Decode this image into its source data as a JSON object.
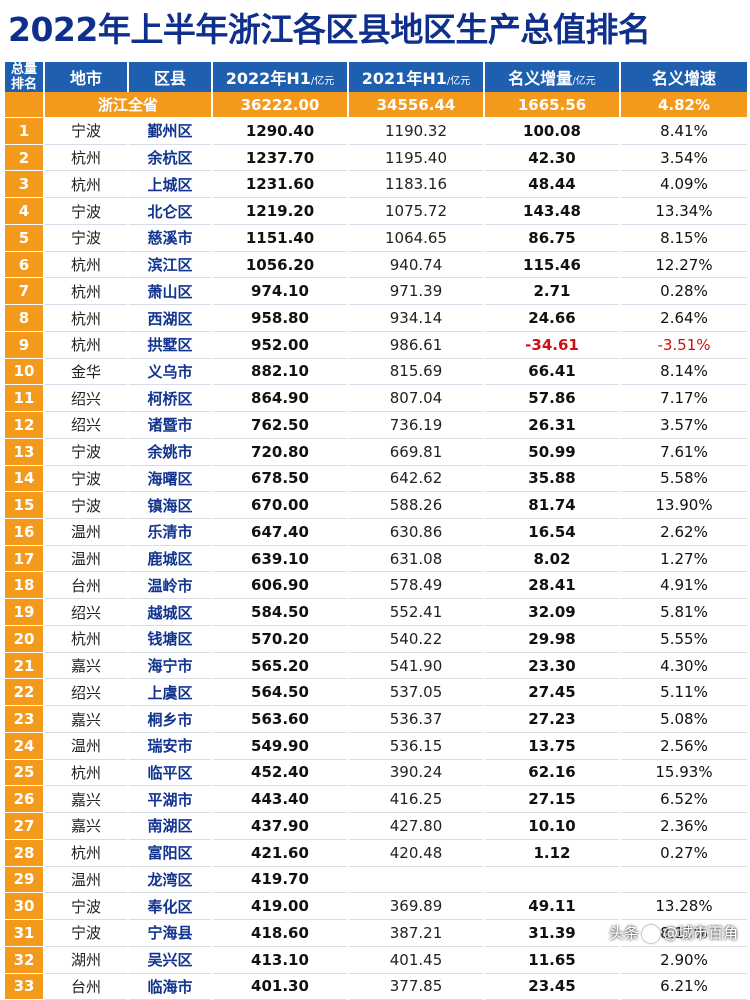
{
  "title": "2022年上半年浙江各区县地区生产总值排名",
  "headers": {
    "rank_top": "总量",
    "rank_bottom": "排名",
    "city": "地市",
    "district": "区县",
    "h1_2022": "2022年H1",
    "h1_2022_unit": "/亿元",
    "h1_2021": "2021年H1",
    "h1_2021_unit": "/亿元",
    "increase": "名义增量",
    "increase_unit": "/亿元",
    "rate": "名义增速"
  },
  "total": {
    "label": "浙江全省",
    "h1_2022": "36222.00",
    "h1_2021": "34556.44",
    "increase": "1665.56",
    "rate": "4.82%"
  },
  "rows": [
    {
      "rank": "1",
      "city": "宁波",
      "district": "鄞州区",
      "h1_2022": "1290.40",
      "h1_2021": "1190.32",
      "increase": "100.08",
      "rate": "8.41%"
    },
    {
      "rank": "2",
      "city": "杭州",
      "district": "余杭区",
      "h1_2022": "1237.70",
      "h1_2021": "1195.40",
      "increase": "42.30",
      "rate": "3.54%"
    },
    {
      "rank": "3",
      "city": "杭州",
      "district": "上城区",
      "h1_2022": "1231.60",
      "h1_2021": "1183.16",
      "increase": "48.44",
      "rate": "4.09%"
    },
    {
      "rank": "4",
      "city": "宁波",
      "district": "北仑区",
      "h1_2022": "1219.20",
      "h1_2021": "1075.72",
      "increase": "143.48",
      "rate": "13.34%"
    },
    {
      "rank": "5",
      "city": "宁波",
      "district": "慈溪市",
      "h1_2022": "1151.40",
      "h1_2021": "1064.65",
      "increase": "86.75",
      "rate": "8.15%"
    },
    {
      "rank": "6",
      "city": "杭州",
      "district": "滨江区",
      "h1_2022": "1056.20",
      "h1_2021": "940.74",
      "increase": "115.46",
      "rate": "12.27%"
    },
    {
      "rank": "7",
      "city": "杭州",
      "district": "萧山区",
      "h1_2022": "974.10",
      "h1_2021": "971.39",
      "increase": "2.71",
      "rate": "0.28%"
    },
    {
      "rank": "8",
      "city": "杭州",
      "district": "西湖区",
      "h1_2022": "958.80",
      "h1_2021": "934.14",
      "increase": "24.66",
      "rate": "2.64%"
    },
    {
      "rank": "9",
      "city": "杭州",
      "district": "拱墅区",
      "h1_2022": "952.00",
      "h1_2021": "986.61",
      "increase": "-34.61",
      "rate": "-3.51%",
      "negative": true
    },
    {
      "rank": "10",
      "city": "金华",
      "district": "义乌市",
      "h1_2022": "882.10",
      "h1_2021": "815.69",
      "increase": "66.41",
      "rate": "8.14%"
    },
    {
      "rank": "11",
      "city": "绍兴",
      "district": "柯桥区",
      "h1_2022": "864.90",
      "h1_2021": "807.04",
      "increase": "57.86",
      "rate": "7.17%"
    },
    {
      "rank": "12",
      "city": "绍兴",
      "district": "诸暨市",
      "h1_2022": "762.50",
      "h1_2021": "736.19",
      "increase": "26.31",
      "rate": "3.57%"
    },
    {
      "rank": "13",
      "city": "宁波",
      "district": "余姚市",
      "h1_2022": "720.80",
      "h1_2021": "669.81",
      "increase": "50.99",
      "rate": "7.61%"
    },
    {
      "rank": "14",
      "city": "宁波",
      "district": "海曙区",
      "h1_2022": "678.50",
      "h1_2021": "642.62",
      "increase": "35.88",
      "rate": "5.58%"
    },
    {
      "rank": "15",
      "city": "宁波",
      "district": "镇海区",
      "h1_2022": "670.00",
      "h1_2021": "588.26",
      "increase": "81.74",
      "rate": "13.90%"
    },
    {
      "rank": "16",
      "city": "温州",
      "district": "乐清市",
      "h1_2022": "647.40",
      "h1_2021": "630.86",
      "increase": "16.54",
      "rate": "2.62%"
    },
    {
      "rank": "17",
      "city": "温州",
      "district": "鹿城区",
      "h1_2022": "639.10",
      "h1_2021": "631.08",
      "increase": "8.02",
      "rate": "1.27%"
    },
    {
      "rank": "18",
      "city": "台州",
      "district": "温岭市",
      "h1_2022": "606.90",
      "h1_2021": "578.49",
      "increase": "28.41",
      "rate": "4.91%"
    },
    {
      "rank": "19",
      "city": "绍兴",
      "district": "越城区",
      "h1_2022": "584.50",
      "h1_2021": "552.41",
      "increase": "32.09",
      "rate": "5.81%"
    },
    {
      "rank": "20",
      "city": "杭州",
      "district": "钱塘区",
      "h1_2022": "570.20",
      "h1_2021": "540.22",
      "increase": "29.98",
      "rate": "5.55%"
    },
    {
      "rank": "21",
      "city": "嘉兴",
      "district": "海宁市",
      "h1_2022": "565.20",
      "h1_2021": "541.90",
      "increase": "23.30",
      "rate": "4.30%"
    },
    {
      "rank": "22",
      "city": "绍兴",
      "district": "上虞区",
      "h1_2022": "564.50",
      "h1_2021": "537.05",
      "increase": "27.45",
      "rate": "5.11%"
    },
    {
      "rank": "23",
      "city": "嘉兴",
      "district": "桐乡市",
      "h1_2022": "563.60",
      "h1_2021": "536.37",
      "increase": "27.23",
      "rate": "5.08%"
    },
    {
      "rank": "24",
      "city": "温州",
      "district": "瑞安市",
      "h1_2022": "549.90",
      "h1_2021": "536.15",
      "increase": "13.75",
      "rate": "2.56%"
    },
    {
      "rank": "25",
      "city": "杭州",
      "district": "临平区",
      "h1_2022": "452.40",
      "h1_2021": "390.24",
      "increase": "62.16",
      "rate": "15.93%"
    },
    {
      "rank": "26",
      "city": "嘉兴",
      "district": "平湖市",
      "h1_2022": "443.40",
      "h1_2021": "416.25",
      "increase": "27.15",
      "rate": "6.52%"
    },
    {
      "rank": "27",
      "city": "嘉兴",
      "district": "南湖区",
      "h1_2022": "437.90",
      "h1_2021": "427.80",
      "increase": "10.10",
      "rate": "2.36%"
    },
    {
      "rank": "28",
      "city": "杭州",
      "district": "富阳区",
      "h1_2022": "421.60",
      "h1_2021": "420.48",
      "increase": "1.12",
      "rate": "0.27%"
    },
    {
      "rank": "29",
      "city": "温州",
      "district": "龙湾区",
      "h1_2022": "419.70",
      "h1_2021": "",
      "increase": "",
      "rate": ""
    },
    {
      "rank": "30",
      "city": "宁波",
      "district": "奉化区",
      "h1_2022": "419.00",
      "h1_2021": "369.89",
      "increase": "49.11",
      "rate": "13.28%"
    },
    {
      "rank": "31",
      "city": "宁波",
      "district": "宁海县",
      "h1_2022": "418.60",
      "h1_2021": "387.21",
      "increase": "31.39",
      "rate": "8.11%"
    },
    {
      "rank": "32",
      "city": "湖州",
      "district": "吴兴区",
      "h1_2022": "413.10",
      "h1_2021": "401.45",
      "increase": "11.65",
      "rate": "2.90%"
    },
    {
      "rank": "33",
      "city": "台州",
      "district": "临海市",
      "h1_2022": "401.30",
      "h1_2021": "377.85",
      "increase": "23.45",
      "rate": "6.21%"
    }
  ],
  "watermark": {
    "brand": "头条",
    "handle": "@城市百角"
  }
}
